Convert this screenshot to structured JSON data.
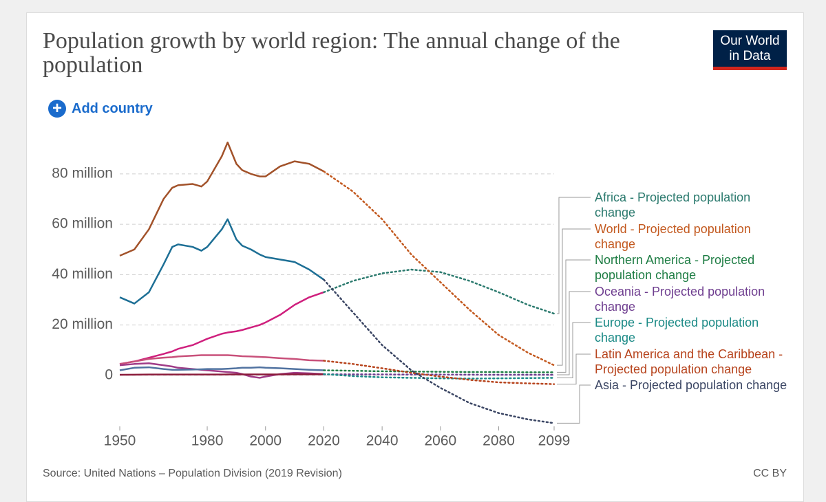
{
  "header": {
    "title": "Population growth by world region: The annual change of the population",
    "logo": [
      "Our World",
      "in Data"
    ],
    "add_country": "Add country"
  },
  "chart_data": {
    "type": "line",
    "xlim": [
      1950,
      2099
    ],
    "xticks": [
      1950,
      1980,
      2000,
      2020,
      2040,
      2060,
      2080,
      2099
    ],
    "ylim": [
      -20000000,
      95000000
    ],
    "yticks": [
      0,
      {
        "value": 20000000,
        "label": "20 million"
      },
      {
        "value": 40000000,
        "label": "40 million"
      },
      {
        "value": 60000000,
        "label": "60 million"
      },
      {
        "value": 80000000,
        "label": "80 million"
      }
    ],
    "grid": true,
    "legend": "right",
    "series": [
      {
        "color": "#a2522a",
        "style": "solid",
        "x": [
          1950,
          1955,
          1960,
          1965,
          1968,
          1970,
          1975,
          1978,
          1980,
          1985,
          1987,
          1990,
          1992,
          1995,
          1998,
          2000,
          2005,
          2010,
          2015,
          2020
        ],
        "values": [
          47500000,
          50000000,
          58000000,
          70000000,
          74500000,
          75500000,
          76000000,
          75000000,
          77000000,
          87000000,
          92500000,
          84000000,
          81500000,
          80000000,
          79000000,
          79000000,
          83000000,
          85000000,
          84000000,
          81000000
        ]
      },
      {
        "color": "#1d6f95",
        "style": "solid",
        "x": [
          1950,
          1955,
          1960,
          1965,
          1968,
          1970,
          1975,
          1978,
          1980,
          1985,
          1987,
          1990,
          1992,
          1995,
          1998,
          2000,
          2005,
          2010,
          2015,
          2020
        ],
        "values": [
          31000000,
          28500000,
          33000000,
          44000000,
          51000000,
          52000000,
          51000000,
          49500000,
          51000000,
          58000000,
          62000000,
          54000000,
          51500000,
          50000000,
          48000000,
          47000000,
          46000000,
          45000000,
          42000000,
          38000000
        ]
      },
      {
        "color": "#cf1f7d",
        "style": "solid",
        "x": [
          1950,
          1955,
          1960,
          1965,
          1968,
          1970,
          1975,
          1978,
          1980,
          1985,
          1987,
          1990,
          1992,
          1995,
          1998,
          2000,
          2005,
          2010,
          2015,
          2020
        ],
        "values": [
          4500000,
          5500000,
          7000000,
          8500000,
          9500000,
          10500000,
          12000000,
          13500000,
          14500000,
          16500000,
          17000000,
          17500000,
          18000000,
          19000000,
          20000000,
          21000000,
          24000000,
          28000000,
          31000000,
          33000000
        ]
      },
      {
        "color": "#c8507a",
        "style": "solid",
        "x": [
          1950,
          1955,
          1960,
          1965,
          1968,
          1970,
          1975,
          1978,
          1980,
          1985,
          1987,
          1990,
          1992,
          1995,
          1998,
          2000,
          2005,
          2010,
          2015,
          2020
        ],
        "values": [
          4500000,
          5500000,
          6500000,
          7000000,
          7200000,
          7500000,
          7800000,
          8000000,
          8000000,
          8000000,
          8000000,
          7800000,
          7600000,
          7500000,
          7300000,
          7200000,
          6800000,
          6500000,
          6000000,
          5800000
        ]
      },
      {
        "color": "#a03c88",
        "style": "solid",
        "x": [
          1950,
          1955,
          1960,
          1965,
          1968,
          1970,
          1975,
          1978,
          1980,
          1985,
          1987,
          1990,
          1992,
          1995,
          1998,
          2000,
          2005,
          2010,
          2015,
          2020
        ],
        "values": [
          4000000,
          4500000,
          4800000,
          4000000,
          3500000,
          3000000,
          2500000,
          2200000,
          2000000,
          1500000,
          1300000,
          1000000,
          500000,
          -500000,
          -1000000,
          -500000,
          500000,
          1000000,
          800000,
          500000
        ]
      },
      {
        "color": "#5072a0",
        "style": "solid",
        "x": [
          1950,
          1955,
          1960,
          1965,
          1968,
          1970,
          1975,
          1978,
          1980,
          1985,
          1987,
          1990,
          1992,
          1995,
          1998,
          2000,
          2005,
          2010,
          2015,
          2020
        ],
        "values": [
          2000000,
          3000000,
          3200000,
          2500000,
          2200000,
          2200000,
          2300000,
          2400000,
          2500000,
          2500000,
          2600000,
          2800000,
          3000000,
          3000000,
          3200000,
          3000000,
          2800000,
          2500000,
          2200000,
          2000000
        ]
      },
      {
        "color": "#8b1b3a",
        "style": "solid",
        "x": [
          1950,
          1955,
          1960,
          1965,
          1968,
          1970,
          1975,
          1978,
          1980,
          1985,
          1987,
          1990,
          1992,
          1995,
          1998,
          2000,
          2005,
          2010,
          2015,
          2020
        ],
        "values": [
          200000,
          250000,
          300000,
          300000,
          300000,
          300000,
          300000,
          300000,
          300000,
          300000,
          350000,
          350000,
          350000,
          350000,
          350000,
          350000,
          350000,
          400000,
          400000,
          400000
        ]
      },
      {
        "name": "Africa - Projected population change",
        "color": "#2b7a6e",
        "style": "dotted",
        "x": [
          2020,
          2030,
          2040,
          2050,
          2060,
          2070,
          2080,
          2090,
          2099
        ],
        "values": [
          33000000,
          37500000,
          40500000,
          42000000,
          41000000,
          37500000,
          33000000,
          28000000,
          24500000
        ]
      },
      {
        "name": "World - Projected population change",
        "color": "#c3591f",
        "style": "dotted",
        "x": [
          2020,
          2030,
          2040,
          2050,
          2060,
          2070,
          2080,
          2090,
          2099
        ],
        "values": [
          81000000,
          73000000,
          62000000,
          48000000,
          37000000,
          26000000,
          16000000,
          9000000,
          4000000
        ]
      },
      {
        "name": "Northern America - Projected population change",
        "color": "#1e7d44",
        "style": "dotted",
        "x": [
          2020,
          2030,
          2040,
          2050,
          2060,
          2070,
          2080,
          2090,
          2099
        ],
        "values": [
          2000000,
          1800000,
          1600000,
          1500000,
          1400000,
          1300000,
          1300000,
          1200000,
          1200000
        ]
      },
      {
        "name": "Oceania - Projected population change",
        "color": "#6e3d8f",
        "style": "dotted",
        "x": [
          2020,
          2030,
          2040,
          2050,
          2060,
          2070,
          2080,
          2090,
          2099
        ],
        "values": [
          400000,
          400000,
          350000,
          300000,
          300000,
          250000,
          200000,
          200000,
          200000
        ]
      },
      {
        "name": "Europe - Projected population change",
        "color": "#1b8a86",
        "style": "dotted",
        "x": [
          2020,
          2030,
          2040,
          2050,
          2060,
          2070,
          2080,
          2090,
          2099
        ],
        "values": [
          500000,
          -300000,
          -800000,
          -1000000,
          -1200000,
          -1300000,
          -1200000,
          -1100000,
          -1000000
        ]
      },
      {
        "name": "Latin America and the Caribbean - Projected population change",
        "color": "#b7441d",
        "style": "dotted",
        "x": [
          2020,
          2030,
          2040,
          2050,
          2060,
          2070,
          2080,
          2090,
          2099
        ],
        "values": [
          5800000,
          4500000,
          2800000,
          1000000,
          -500000,
          -1800000,
          -2800000,
          -3200000,
          -3500000
        ]
      },
      {
        "name": "Asia - Projected population change",
        "color": "#3a4563",
        "style": "dotted",
        "x": [
          2020,
          2030,
          2040,
          2050,
          2060,
          2070,
          2080,
          2090,
          2099
        ],
        "values": [
          38000000,
          25000000,
          12000000,
          2000000,
          -5000000,
          -11000000,
          -15000000,
          -17500000,
          -19000000
        ]
      }
    ]
  },
  "footer": {
    "source": "Source: United Nations – Population Division (2019 Revision)",
    "license": "CC BY"
  }
}
